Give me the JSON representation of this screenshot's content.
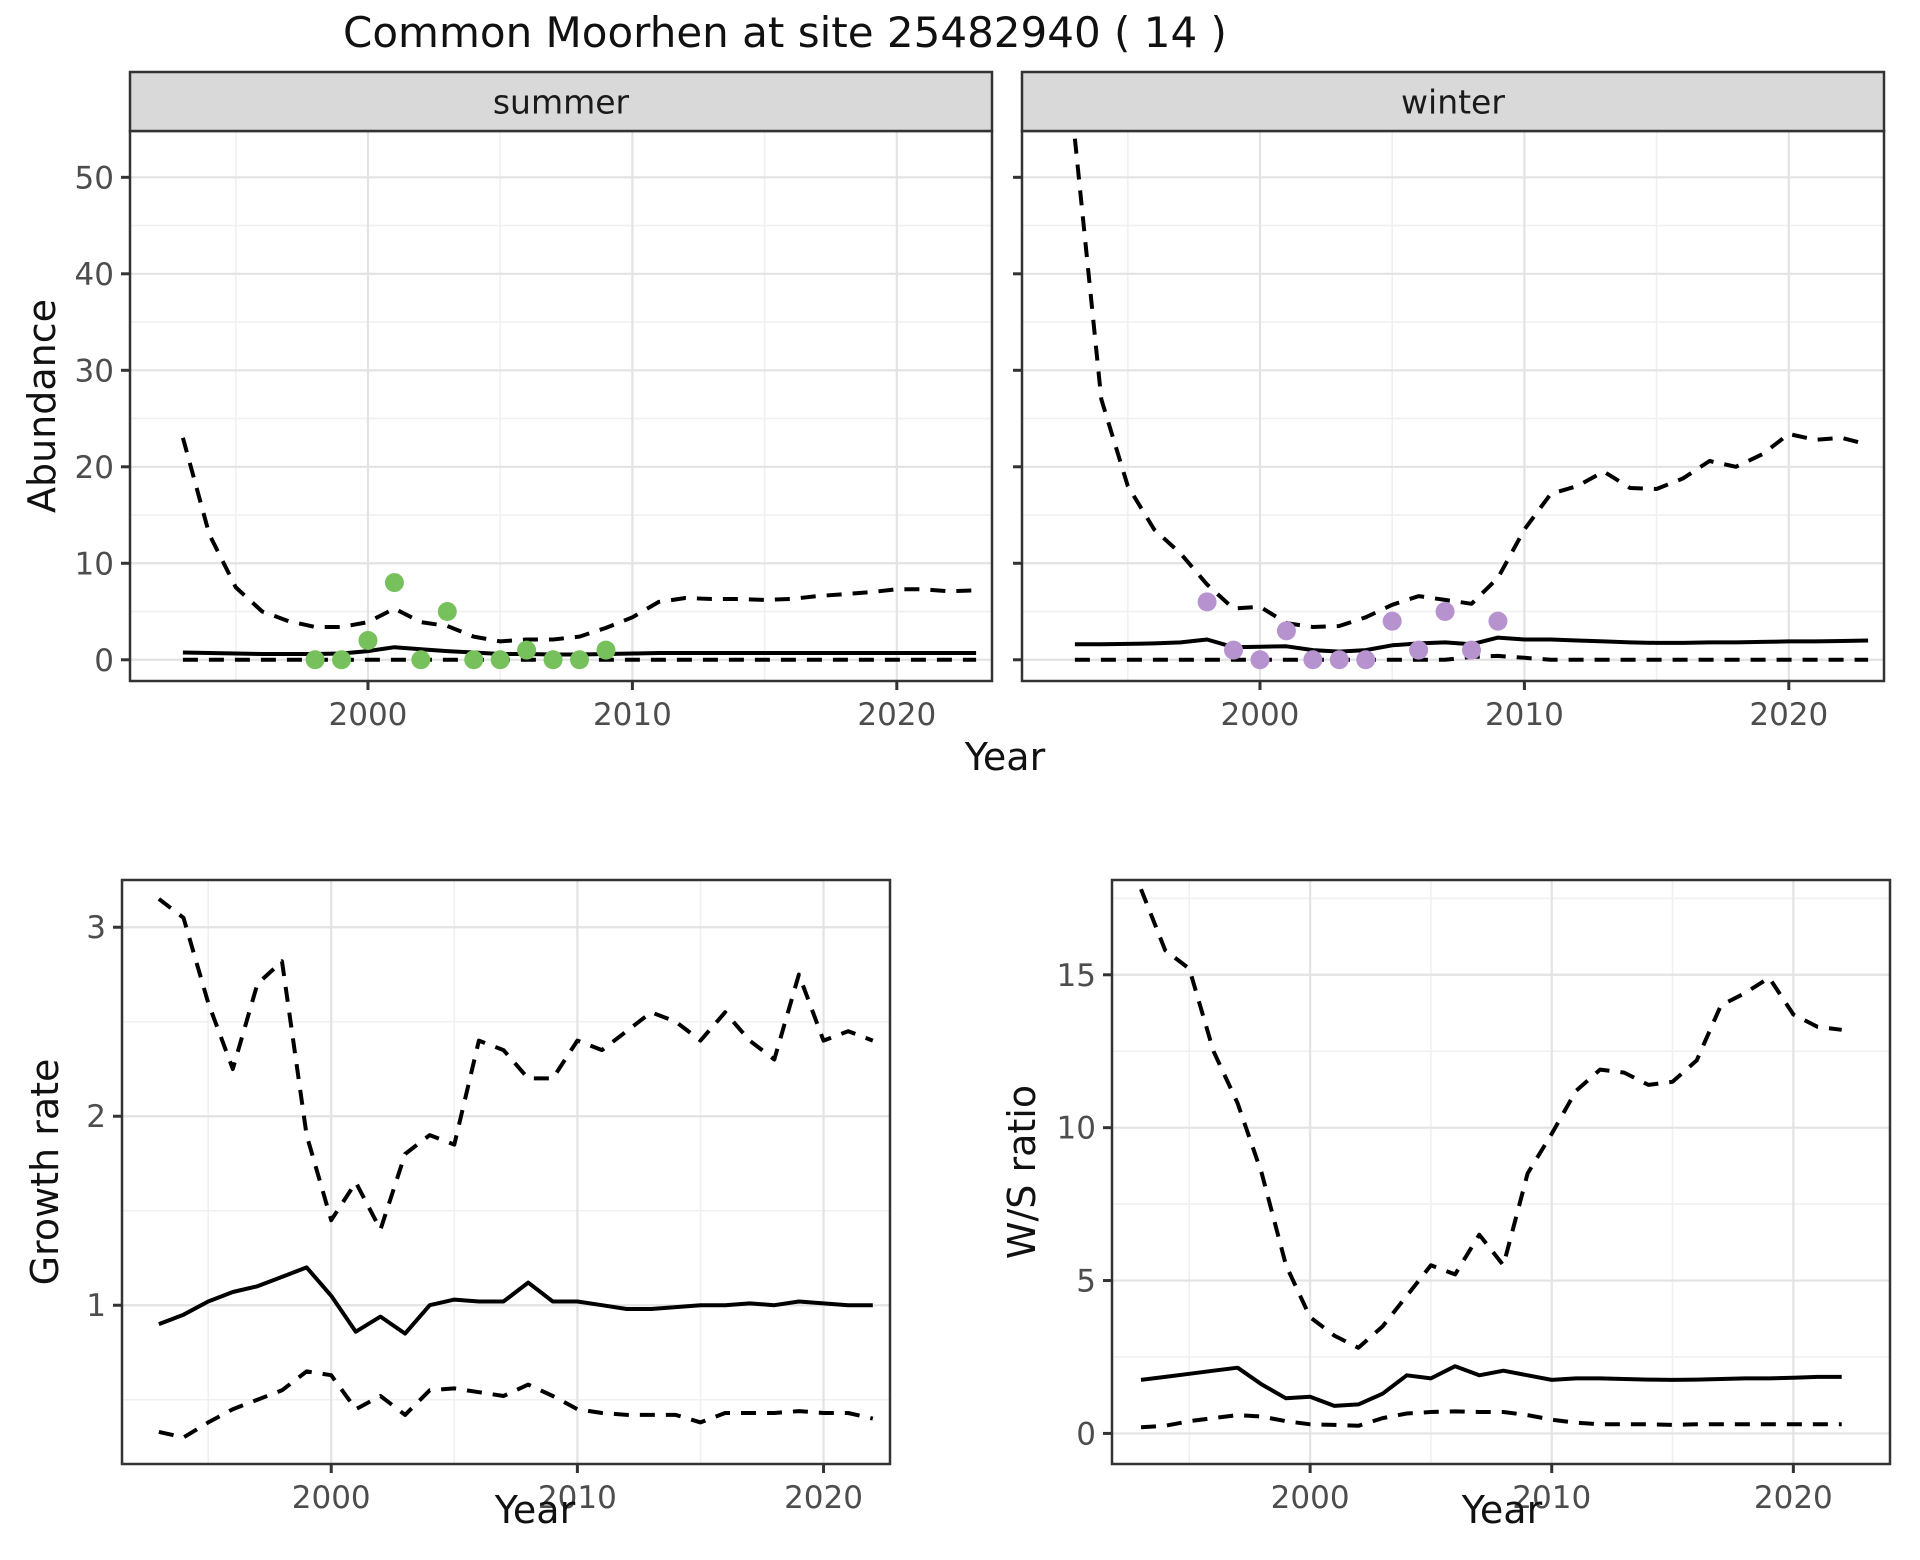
{
  "title": "Common Moorhen at site 25482940 ( 14 )",
  "axis_labels": {
    "abundance": "Abundance",
    "year_top": "Year",
    "growth_rate": "Growth rate",
    "year_bottom_left": "Year",
    "ws_ratio": "W/S ratio",
    "year_bottom_right": "Year"
  },
  "colors": {
    "summer_points": "#76c15c",
    "winter_points": "#b692cf",
    "line": "#000000",
    "strip_bg": "#d9d9d9",
    "strip_text": "#1a1a1a",
    "panel_border": "#333333",
    "grid_major": "#e3e3e3",
    "grid_minor": "#f0f0f0",
    "tick_text": "#4d4d4d",
    "tick_mark": "#333333"
  },
  "chart_data": [
    {
      "id": "abundance-summer",
      "type": "line",
      "facet_label": "summer",
      "xlabel": "Year",
      "ylabel": "Abundance",
      "xlim": [
        1991.0,
        2023.6
      ],
      "ylim": [
        -2.2,
        54.8
      ],
      "x_ticks": [
        2000,
        2010,
        2020
      ],
      "y_ticks": [
        0,
        10,
        20,
        30,
        40,
        50
      ],
      "x_minor": [
        1995,
        2005,
        2015
      ],
      "y_minor": [
        5,
        15,
        25,
        35,
        45
      ],
      "x": [
        1993,
        1994,
        1995,
        1996,
        1997,
        1998,
        1999,
        2000,
        2001,
        2002,
        2003,
        2004,
        2005,
        2006,
        2007,
        2008,
        2009,
        2010,
        2011,
        2012,
        2013,
        2014,
        2015,
        2016,
        2017,
        2018,
        2019,
        2020,
        2021,
        2022,
        2023
      ],
      "series": [
        {
          "name": "upper_ci",
          "style": "dashed",
          "values": [
            23,
            13,
            7.5,
            5,
            4,
            3.4,
            3.4,
            3.9,
            5.3,
            3.9,
            3.5,
            2.4,
            1.9,
            2.1,
            2.1,
            2.4,
            3.3,
            4.4,
            6.0,
            6.4,
            6.3,
            6.3,
            6.2,
            6.3,
            6.6,
            6.8,
            7.0,
            7.3,
            7.3,
            7.1,
            7.2
          ]
        },
        {
          "name": "median",
          "style": "solid",
          "values": [
            0.75,
            0.7,
            0.65,
            0.6,
            0.6,
            0.6,
            0.65,
            0.9,
            1.3,
            1.1,
            0.9,
            0.75,
            0.6,
            0.6,
            0.55,
            0.55,
            0.6,
            0.65,
            0.7,
            0.7,
            0.7,
            0.7,
            0.7,
            0.7,
            0.7,
            0.7,
            0.7,
            0.7,
            0.7,
            0.7,
            0.7
          ]
        },
        {
          "name": "lower_ci",
          "style": "dashed",
          "values": [
            0,
            0,
            0,
            0,
            0,
            0,
            0,
            0,
            0,
            0,
            0,
            0,
            0,
            0,
            0,
            0,
            0,
            0,
            0,
            0,
            0,
            0,
            0,
            0,
            0,
            0,
            0,
            0,
            0,
            0,
            0
          ]
        }
      ],
      "points": {
        "name": "observed_counts",
        "x": [
          1998,
          1999,
          2000,
          2001,
          2002,
          2003,
          2004,
          2005,
          2006,
          2007,
          2008,
          2009
        ],
        "y": [
          0,
          0,
          2,
          8,
          0,
          5,
          0,
          0,
          1,
          0,
          0,
          1
        ],
        "color_key": "summer_points"
      }
    },
    {
      "id": "abundance-winter",
      "type": "line",
      "facet_label": "winter",
      "xlabel": "Year",
      "ylabel": "Abundance",
      "xlim": [
        1991.0,
        2023.6
      ],
      "ylim": [
        -2.2,
        54.8
      ],
      "x_ticks": [
        2000,
        2010,
        2020
      ],
      "y_ticks": [
        0,
        10,
        20,
        30,
        40,
        50
      ],
      "x_minor": [
        1995,
        2005,
        2015
      ],
      "y_minor": [
        5,
        15,
        25,
        35,
        45
      ],
      "x": [
        1993,
        1994,
        1995,
        1996,
        1997,
        1998,
        1999,
        2000,
        2001,
        2002,
        2003,
        2004,
        2005,
        2006,
        2007,
        2008,
        2009,
        2010,
        2011,
        2012,
        2013,
        2014,
        2015,
        2016,
        2017,
        2018,
        2019,
        2020,
        2021,
        2022,
        2023
      ],
      "series": [
        {
          "name": "upper_ci",
          "style": "dashed",
          "values": [
            54,
            27,
            18,
            13.5,
            11,
            7.8,
            5.3,
            5.5,
            3.8,
            3.4,
            3.5,
            4.4,
            5.7,
            6.6,
            6.2,
            5.8,
            8.5,
            13.5,
            17.2,
            18,
            19.5,
            17.8,
            17.7,
            18.8,
            20.6,
            20,
            21.3,
            23.4,
            22.8,
            23,
            22.3
          ]
        },
        {
          "name": "median",
          "style": "solid",
          "values": [
            1.6,
            1.6,
            1.65,
            1.7,
            1.8,
            2.1,
            1.3,
            1.35,
            1.4,
            1.0,
            0.85,
            1.0,
            1.5,
            1.7,
            1.8,
            1.6,
            2.3,
            2.1,
            2.1,
            2.0,
            1.9,
            1.8,
            1.75,
            1.75,
            1.8,
            1.8,
            1.85,
            1.9,
            1.9,
            1.95,
            2.0
          ]
        },
        {
          "name": "lower_ci",
          "style": "dashed",
          "values": [
            0,
            0,
            0,
            0,
            0,
            0,
            0,
            0,
            0,
            0,
            0,
            0,
            0,
            0,
            0,
            0.3,
            0.4,
            0.2,
            0,
            0,
            0,
            0,
            0,
            0,
            0,
            0,
            0,
            0,
            0,
            0,
            0
          ]
        }
      ],
      "points": {
        "name": "observed_counts",
        "x": [
          1998,
          1999,
          2000,
          2001,
          2002,
          2003,
          2004,
          2005,
          2006,
          2007,
          2008,
          2009
        ],
        "y": [
          6,
          1,
          0,
          3,
          0,
          0,
          0,
          4,
          1,
          5,
          1,
          4
        ],
        "color_key": "winter_points"
      }
    },
    {
      "id": "growth-rate",
      "type": "line",
      "facet_label": null,
      "xlabel": "Year",
      "ylabel": "Growth rate",
      "xlim": [
        1991.5,
        2022.7
      ],
      "ylim": [
        0.16,
        3.25
      ],
      "x_ticks": [
        2000,
        2010,
        2020
      ],
      "y_ticks": [
        1,
        2,
        3
      ],
      "x_minor": [
        1995,
        2005,
        2015
      ],
      "y_minor": [
        0.5,
        1.5,
        2.5
      ],
      "x": [
        1993,
        1994,
        1995,
        1996,
        1997,
        1998,
        1999,
        2000,
        2001,
        2002,
        2003,
        2004,
        2005,
        2006,
        2007,
        2008,
        2009,
        2010,
        2011,
        2012,
        2013,
        2014,
        2015,
        2016,
        2017,
        2018,
        2019,
        2020,
        2021,
        2022
      ],
      "series": [
        {
          "name": "upper_ci",
          "style": "dashed",
          "values": [
            3.15,
            3.05,
            2.6,
            2.25,
            2.7,
            2.82,
            1.9,
            1.45,
            1.65,
            1.4,
            1.8,
            1.9,
            1.85,
            2.4,
            2.35,
            2.2,
            2.2,
            2.4,
            2.35,
            2.45,
            2.55,
            2.5,
            2.4,
            2.55,
            2.4,
            2.3,
            2.75,
            2.4,
            2.45,
            2.4
          ]
        },
        {
          "name": "median",
          "style": "solid",
          "values": [
            0.9,
            0.95,
            1.02,
            1.07,
            1.1,
            1.15,
            1.2,
            1.05,
            0.86,
            0.94,
            0.85,
            1.0,
            1.03,
            1.02,
            1.02,
            1.12,
            1.02,
            1.02,
            1.0,
            0.98,
            0.98,
            0.99,
            1.0,
            1.0,
            1.01,
            1.0,
            1.02,
            1.01,
            1.0,
            1.0
          ]
        },
        {
          "name": "lower_ci",
          "style": "dashed",
          "values": [
            0.33,
            0.3,
            0.38,
            0.45,
            0.5,
            0.55,
            0.65,
            0.63,
            0.45,
            0.52,
            0.42,
            0.55,
            0.56,
            0.54,
            0.52,
            0.58,
            0.52,
            0.45,
            0.43,
            0.42,
            0.42,
            0.42,
            0.38,
            0.43,
            0.43,
            0.43,
            0.44,
            0.43,
            0.43,
            0.4
          ]
        }
      ],
      "points": null
    },
    {
      "id": "ws-ratio",
      "type": "line",
      "facet_label": null,
      "xlabel": "Year",
      "ylabel": "W/S ratio",
      "xlim": [
        1991.8,
        2024.0
      ],
      "ylim": [
        -1.0,
        18.1
      ],
      "x_ticks": [
        2000,
        2010,
        2020
      ],
      "y_ticks": [
        0,
        5,
        10,
        15
      ],
      "x_minor": [
        1995,
        2005,
        2015
      ],
      "y_minor": [
        2.5,
        7.5,
        12.5,
        17.5
      ],
      "x": [
        1993,
        1994,
        1995,
        1996,
        1997,
        1998,
        1999,
        2000,
        2001,
        2002,
        2003,
        2004,
        2005,
        2006,
        2007,
        2008,
        2009,
        2010,
        2011,
        2012,
        2013,
        2014,
        2015,
        2016,
        2017,
        2018,
        2019,
        2020,
        2021,
        2022
      ],
      "series": [
        {
          "name": "upper_ci",
          "style": "dashed",
          "values": [
            17.8,
            15.8,
            15.2,
            12.5,
            10.8,
            8.5,
            5.5,
            3.8,
            3.2,
            2.8,
            3.5,
            4.5,
            5.5,
            5.2,
            6.5,
            5.5,
            8.5,
            9.8,
            11.2,
            11.9,
            11.8,
            11.4,
            11.5,
            12.2,
            14,
            14.4,
            14.9,
            13.7,
            13.3,
            13.2
          ]
        },
        {
          "name": "median",
          "style": "solid",
          "values": [
            1.75,
            1.85,
            1.95,
            2.05,
            2.15,
            1.6,
            1.15,
            1.2,
            0.9,
            0.95,
            1.3,
            1.9,
            1.8,
            2.2,
            1.9,
            2.05,
            1.9,
            1.75,
            1.8,
            1.8,
            1.78,
            1.76,
            1.75,
            1.76,
            1.78,
            1.8,
            1.8,
            1.82,
            1.85,
            1.85
          ]
        },
        {
          "name": "lower_ci",
          "style": "dashed",
          "values": [
            0.2,
            0.25,
            0.4,
            0.5,
            0.6,
            0.55,
            0.4,
            0.3,
            0.28,
            0.25,
            0.5,
            0.65,
            0.7,
            0.72,
            0.7,
            0.7,
            0.6,
            0.45,
            0.35,
            0.3,
            0.3,
            0.3,
            0.28,
            0.3,
            0.3,
            0.3,
            0.3,
            0.3,
            0.3,
            0.3
          ]
        }
      ],
      "points": null
    }
  ]
}
